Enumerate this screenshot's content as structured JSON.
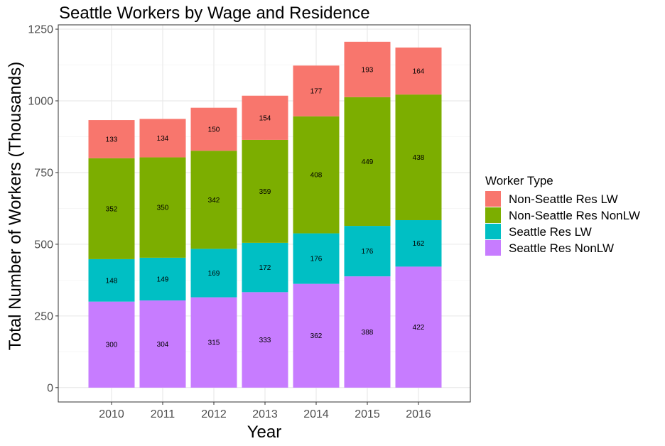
{
  "chart_data": {
    "type": "bar",
    "stacked": true,
    "title": "Seattle Workers by Wage and Residence",
    "xlabel": "Year",
    "ylabel": "Total Number of Workers (Thousands)",
    "categories": [
      "2010",
      "2011",
      "2012",
      "2013",
      "2014",
      "2015",
      "2016"
    ],
    "ylim": [
      -50,
      1265
    ],
    "yticks": [
      0,
      250,
      500,
      750,
      1000,
      1250
    ],
    "grid": true,
    "legend": {
      "title": "Worker Type",
      "placement": "right"
    },
    "series": [
      {
        "name": "Seattle Res NonLW",
        "color": "#C77CFF",
        "values": [
          300,
          304,
          315,
          333,
          362,
          388,
          422
        ]
      },
      {
        "name": "Seattle Res LW",
        "color": "#00BFC4",
        "values": [
          148,
          149,
          169,
          172,
          176,
          176,
          162
        ]
      },
      {
        "name": "Non-Seattle Res NonLW",
        "color": "#7CAE00",
        "values": [
          352,
          350,
          342,
          359,
          408,
          449,
          438
        ]
      },
      {
        "name": "Non-Seattle Res LW",
        "color": "#F8766D",
        "values": [
          133,
          134,
          150,
          154,
          177,
          193,
          164
        ]
      }
    ]
  }
}
